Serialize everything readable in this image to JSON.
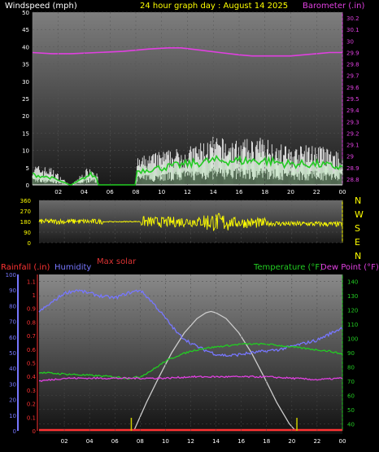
{
  "header": {
    "windspeed_label": "Windspeed (mph)",
    "title": "24 hour graph day : August 14 2025",
    "barometer_label": "Barometer (.in)"
  },
  "compass": {
    "letters": [
      "N",
      "W",
      "S",
      "E",
      "N"
    ]
  },
  "legend": {
    "rainfall": "Rainfall (.in)",
    "humidity": "Humidity",
    "max_solar": "Max solar",
    "temperature": "Temperature (°F)",
    "dew_point": "Dew Point (°F)"
  },
  "colors": {
    "background": "#000000",
    "wind": "#ffffff",
    "wind_avg": "#22cc22",
    "wind_light": "#bbffbb",
    "barometer": "#e040e0",
    "direction": "#ffff00",
    "rainfall": "#ff3333",
    "humidity": "#7777ff",
    "solar": "#cccccc",
    "temperature": "#22cc22",
    "dew_point": "#e040e0",
    "yellow_tick": "#cccc00"
  },
  "x_ticks": [
    "02",
    "04",
    "06",
    "08",
    "10",
    "12",
    "14",
    "16",
    "18",
    "20",
    "22",
    "00"
  ],
  "chart_data": [
    {
      "type": "line",
      "name": "wind",
      "x_range_hours": [
        0,
        24
      ],
      "wind_axis": {
        "ticks": [
          "0",
          "5",
          "10",
          "15",
          "20",
          "25",
          "30",
          "35",
          "40",
          "45",
          "50"
        ],
        "ylim": [
          0,
          50
        ]
      },
      "barometer_axis": {
        "ticks": [
          "28.8",
          "28.9",
          "29",
          "29.1",
          "29.2",
          "29.3",
          "29.4",
          "29.5",
          "29.6",
          "29.7",
          "29.8",
          "29.9",
          "30",
          "30.1",
          "30.2"
        ],
        "ylim": [
          28.75,
          30.25
        ]
      },
      "barometer": {
        "x": [
          0,
          1.5,
          3,
          5,
          7,
          9,
          10.5,
          11.5,
          13,
          14.5,
          16,
          17,
          18,
          19,
          20,
          21,
          22,
          23,
          24
        ],
        "y": [
          29.9,
          29.89,
          29.89,
          29.9,
          29.91,
          29.93,
          29.94,
          29.94,
          29.92,
          29.9,
          29.88,
          29.87,
          29.87,
          29.87,
          29.87,
          29.88,
          29.89,
          29.9,
          29.9
        ]
      },
      "gust_max": {
        "x": [
          0,
          1.5,
          2.9,
          3,
          4.5,
          5,
          5.1,
          8,
          8.1,
          10,
          12,
          14,
          16,
          18,
          20,
          22,
          24
        ],
        "y": [
          6,
          5,
          0,
          0,
          6,
          4,
          0,
          0,
          8,
          10,
          11,
          14,
          13,
          14,
          11,
          12,
          9
        ]
      },
      "avg": {
        "x": [
          0,
          1.5,
          2.9,
          3,
          4.5,
          5,
          5.1,
          8,
          8.1,
          10,
          12,
          14,
          16,
          18,
          20,
          22,
          24
        ],
        "y": [
          3,
          2,
          0,
          0,
          3,
          2,
          0,
          0,
          4,
          5,
          6,
          7,
          7,
          7,
          6,
          6,
          5
        ]
      }
    },
    {
      "type": "line",
      "name": "direction",
      "x_range_hours": [
        0,
        24
      ],
      "axis": {
        "ticks": [
          "0",
          "90",
          "180",
          "270",
          "360"
        ],
        "ylim": [
          0,
          360
        ]
      },
      "direction": {
        "x": [
          0,
          2,
          4,
          6,
          8,
          10,
          12,
          14,
          16,
          18,
          20,
          22,
          24
        ],
        "y": [
          180,
          180,
          180,
          178,
          180,
          175,
          180,
          175,
          170,
          165,
          160,
          160,
          155
        ]
      }
    },
    {
      "type": "line",
      "name": "temperature_humidity",
      "x_range_hours": [
        0,
        24
      ],
      "humidity_axis": {
        "ticks": [
          "0",
          "10",
          "20",
          "30",
          "40",
          "50",
          "60",
          "70",
          "80",
          "90",
          "100"
        ],
        "ylim": [
          0,
          100
        ]
      },
      "rain_axis": {
        "ticks": [
          "0",
          "0.1",
          "0.2",
          "0.3",
          "0.4",
          "0.5",
          "0.6",
          "0.7",
          "0.8",
          "0.9",
          "1",
          "1.1"
        ],
        "ylim": [
          0,
          1.15
        ]
      },
      "temperature_axis": {
        "ticks": [
          "40",
          "50",
          "60",
          "70",
          "80",
          "90",
          "100",
          "110",
          "120",
          "130",
          "140"
        ],
        "ylim": [
          35,
          145
        ]
      },
      "humidity": {
        "x": [
          0,
          1,
          2,
          3,
          4,
          5,
          6,
          7,
          8,
          9,
          10,
          11,
          12,
          13,
          14,
          15,
          16,
          17,
          18,
          19,
          20,
          21,
          22,
          23,
          24
        ],
        "y": [
          76,
          82,
          88,
          90,
          88,
          86,
          85,
          88,
          90,
          82,
          72,
          62,
          56,
          52,
          49,
          48,
          49,
          50,
          51,
          52,
          54,
          56,
          58,
          62,
          66
        ]
      },
      "temperature": {
        "x": [
          0,
          2,
          4,
          6,
          7,
          8,
          9,
          10,
          11,
          12,
          13,
          14,
          15,
          16,
          17,
          18,
          19,
          20,
          21,
          22,
          23,
          24
        ],
        "y": [
          76,
          75,
          74,
          73,
          72,
          73,
          78,
          84,
          88,
          91,
          93,
          94,
          95,
          96,
          96,
          96,
          95,
          94,
          93,
          92,
          91,
          89
        ]
      },
      "dew_point": {
        "x": [
          0,
          2,
          4,
          6,
          8,
          10,
          12,
          14,
          16,
          18,
          20,
          22,
          24
        ],
        "y": [
          70,
          72,
          72,
          72,
          72,
          72,
          73,
          73,
          73,
          73,
          72,
          71,
          72
        ]
      },
      "max_solar": {
        "x": [
          7.5,
          8.5,
          9.5,
          10.5,
          11.5,
          12.5,
          13.2,
          13.6,
          14,
          14.8,
          15.8,
          16.8,
          17.8,
          18.8,
          19.8,
          20.3
        ],
        "y": [
          35,
          55,
          73,
          90,
          104,
          114,
          118,
          119,
          118,
          114,
          104,
          90,
          73,
          55,
          40,
          35
        ]
      },
      "rainfall": {
        "x": [
          0,
          24
        ],
        "y": [
          0,
          0
        ]
      },
      "event_markers_hours": [
        7.3,
        20.4
      ]
    }
  ]
}
